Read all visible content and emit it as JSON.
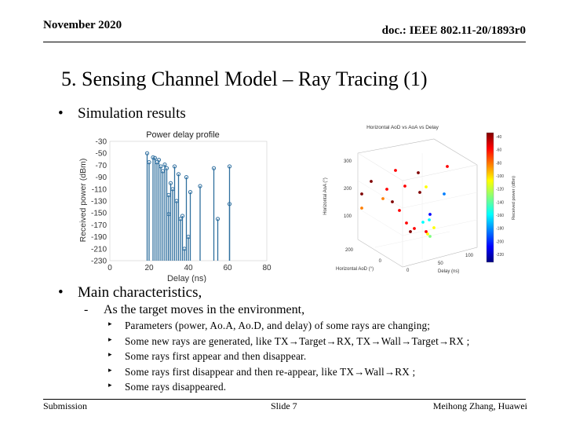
{
  "header": {
    "date": "November 2020",
    "doc_id": "doc.: IEEE 802.11-20/1893r0"
  },
  "slide_title": "5. Sensing Channel Model – Ray Tracing (1)",
  "bullets": {
    "simulation": "Simulation results",
    "main": "Main characteristics,"
  },
  "sub_bullet": {
    "marker": "-",
    "text": "As the target moves in the environment,"
  },
  "details": [
    "Parameters (power, Ao.A, Ao.D, and delay) of some rays are changing;",
    "Some new rays are generated, like TX→Target→RX,   TX→Wall→Target→RX ;",
    "Some rays first appear and then disappear.",
    "Some rays first disappear and then re-appear, like TX→Wall→RX ;",
    "Some rays disappeared."
  ],
  "footer": {
    "left": "Submission",
    "center": "Slide 7",
    "right": "Meihong Zhang, Huawei"
  },
  "chart_data": [
    {
      "type": "scatter",
      "title": "Power delay profile",
      "xlabel": "Delay (ns)",
      "ylabel": "Received power (dBm)",
      "xlim": [
        0,
        80
      ],
      "ylim": [
        -230,
        -30
      ],
      "xticks": [
        0,
        20,
        40,
        60,
        80
      ],
      "yticks": [
        -30,
        -50,
        -70,
        -90,
        -110,
        -130,
        -150,
        -170,
        -190,
        -210,
        -230
      ],
      "stem_base": -230,
      "stems": [
        [
          19,
          -50
        ],
        [
          20,
          -65
        ],
        [
          22,
          -57
        ],
        [
          23,
          -58
        ],
        [
          24,
          -65
        ],
        [
          25,
          -61
        ],
        [
          26,
          -72
        ],
        [
          27,
          -80
        ],
        [
          28,
          -69
        ],
        [
          29,
          -75
        ],
        [
          30,
          -120
        ],
        [
          30,
          -152
        ],
        [
          31,
          -100
        ],
        [
          32,
          -110
        ],
        [
          33,
          -72
        ],
        [
          34,
          -130
        ],
        [
          35,
          -85
        ],
        [
          36,
          -160
        ],
        [
          37,
          -155
        ],
        [
          38,
          -210
        ],
        [
          39,
          -90
        ],
        [
          40,
          -190
        ],
        [
          41,
          -115
        ],
        [
          46,
          -105
        ],
        [
          53,
          -75
        ],
        [
          55,
          -160
        ],
        [
          61,
          -72
        ],
        [
          61,
          -135
        ]
      ]
    },
    {
      "type": "scatter",
      "title": "Horizontal AoD vs AoA vs Delay",
      "xlabel": "Horizontal AoD (°)",
      "ylabel": "Horizontal AoA (°)",
      "zlabel": "Delay (ns)",
      "colorbar_label": "Received power (dBm)",
      "colorbar_ticks": [
        -40,
        -60,
        -80,
        -100,
        -120,
        -140,
        -160,
        -180,
        -200,
        -220
      ],
      "yticks": [
        100,
        200,
        300
      ],
      "aod_ticks": [
        0,
        200
      ],
      "delay_ticks": [
        0,
        50,
        100
      ],
      "colors": [
        "#00007f",
        "#0000ff",
        "#007fff",
        "#00ffff",
        "#7fff7f",
        "#ffff00",
        "#ff7f00",
        "#ff0000",
        "#7f0000"
      ]
    }
  ]
}
